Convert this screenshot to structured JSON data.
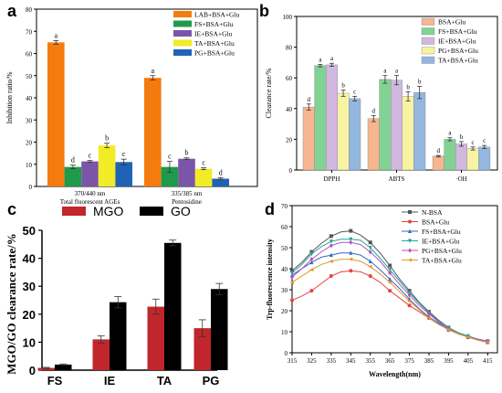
{
  "colors": {
    "orange": "#F47B0E",
    "green": "#1F9A4A",
    "purple": "#7B55A8",
    "yellow": "#F2EC26",
    "blue": "#1F63B4",
    "b_orange": "#F5B690",
    "b_green": "#82D293",
    "b_purple": "#D1B8DF",
    "b_yellow": "#F8F3A2",
    "b_blue": "#93B7DF",
    "red": "#C1262D",
    "black": "#000000",
    "d1": "#555555",
    "d2": "#E8423F",
    "d3": "#3B67C1",
    "d4": "#21A896",
    "d5": "#B84FC1",
    "d6": "#E09A2B"
  },
  "chart_data": [
    {
      "panel": "a",
      "type": "bar",
      "ylabel": "Inhibition ratio/%",
      "ylim": [
        0,
        80
      ],
      "yticks": [
        "0",
        "10",
        "20",
        "30",
        "40",
        "50",
        "60",
        "70",
        "80"
      ],
      "groups": [
        {
          "lines": [
            "370/440 nm",
            "Total fluorescent AGEs"
          ]
        },
        {
          "lines": [
            "335/385 nm",
            "Pentosidine"
          ]
        }
      ],
      "series": [
        {
          "name": "LAB+BSA+Glu",
          "color": "orange",
          "values": [
            65.0,
            49.0
          ],
          "errors": [
            0.8,
            1.0
          ],
          "letters": [
            "a",
            "a"
          ]
        },
        {
          "name": "FS+BSA+Glu",
          "color": "green",
          "values": [
            8.8,
            8.8
          ],
          "errors": [
            0.8,
            2.5
          ],
          "letters": [
            "d",
            "c"
          ]
        },
        {
          "name": "IE+BSA+Glu",
          "color": "purple",
          "values": [
            11.3,
            12.5
          ],
          "errors": [
            0.4,
            0.4
          ],
          "letters": [
            "c",
            "b"
          ]
        },
        {
          "name": "TA+BSA+Glu",
          "color": "yellow",
          "values": [
            18.5,
            8.0
          ],
          "errors": [
            1.0,
            0.4
          ],
          "letters": [
            "b",
            "c"
          ]
        },
        {
          "name": "PG+BSA+Glu",
          "color": "blue",
          "values": [
            11.0,
            3.5
          ],
          "errors": [
            1.3,
            0.5
          ],
          "letters": [
            "c",
            "d"
          ]
        }
      ]
    },
    {
      "panel": "b",
      "type": "bar",
      "ylabel": "Clearance rate/%",
      "ylim": [
        0,
        100
      ],
      "yticks": [
        "0",
        "20",
        "40",
        "60",
        "80",
        "100"
      ],
      "categories": [
        "DPPH",
        "ABTS",
        "·OH"
      ],
      "series": [
        {
          "name": "BSA+Glu",
          "color": "b_orange",
          "values": [
            41,
            33.5,
            9
          ],
          "errors": [
            2,
            2,
            0.5
          ],
          "letters": [
            "d",
            "d",
            "d"
          ]
        },
        {
          "name": "FS+BSA+Glu",
          "color": "b_green",
          "values": [
            68,
            59,
            20
          ],
          "errors": [
            0.8,
            2.5,
            1
          ],
          "letters": [
            "a",
            "a",
            "a"
          ]
        },
        {
          "name": "IE+BSA+Glu",
          "color": "b_purple",
          "values": [
            68.5,
            58.5,
            17
          ],
          "errors": [
            1,
            3,
            1.5
          ],
          "letters": [
            "a",
            "a",
            "b"
          ]
        },
        {
          "name": "PG+BSA+Glu",
          "color": "b_yellow",
          "values": [
            50,
            48,
            14
          ],
          "errors": [
            2,
            3,
            1
          ],
          "letters": [
            "b",
            "b",
            "c"
          ]
        },
        {
          "name": "TA+BSA+Glu",
          "color": "b_blue",
          "values": [
            46.5,
            50.5,
            15
          ],
          "errors": [
            1.5,
            4,
            1
          ],
          "letters": [
            "c",
            "b",
            "c"
          ]
        }
      ]
    },
    {
      "panel": "c",
      "type": "bar",
      "ylabel": "MGO/GO clearance rate/%",
      "ylim": [
        0,
        50
      ],
      "yticks": [
        "0",
        "10",
        "20",
        "30",
        "40",
        "50"
      ],
      "categories": [
        "FS",
        "IE",
        "TA",
        "PG"
      ],
      "series": [
        {
          "name": "MGO",
          "color": "red",
          "values": [
            0.8,
            11,
            22.7,
            15
          ],
          "errors": [
            0.2,
            1.3,
            2.7,
            3
          ]
        },
        {
          "name": "GO",
          "color": "black",
          "values": [
            2,
            24.3,
            45.5,
            29
          ],
          "errors": [
            0.2,
            2,
            1,
            2
          ]
        }
      ]
    },
    {
      "panel": "d",
      "type": "line",
      "xlabel": "Wavelength(nm)",
      "ylabel": "Trp-fluorescence intensity",
      "xlim": [
        315,
        420
      ],
      "ylim": [
        0,
        70
      ],
      "xticks": [
        "315",
        "325",
        "335",
        "345",
        "355",
        "365",
        "375",
        "385",
        "395",
        "405",
        "415"
      ],
      "yticks": [
        "0",
        "10",
        "20",
        "30",
        "40",
        "50",
        "60",
        "70"
      ],
      "x": [
        315,
        320,
        325,
        330,
        335,
        340,
        345,
        350,
        355,
        360,
        365,
        370,
        375,
        380,
        385,
        390,
        395,
        400,
        405,
        410,
        415
      ],
      "series": [
        {
          "name": "N-BSA",
          "marker": "square",
          "color": "d1",
          "values": [
            39,
            43,
            48,
            52,
            55.5,
            57.5,
            58,
            56,
            52.5,
            47.5,
            41.5,
            35,
            29.5,
            24,
            19.5,
            15.5,
            12,
            9.5,
            7.5,
            6.5,
            5.5
          ]
        },
        {
          "name": "BSA+Glu",
          "marker": "circle",
          "color": "d2",
          "values": [
            25,
            27,
            29.5,
            33,
            36.5,
            38.5,
            39,
            38.5,
            36.5,
            33.5,
            29.5,
            26,
            22.5,
            19.5,
            16.5,
            13.5,
            11,
            9,
            7.5,
            6,
            5
          ]
        },
        {
          "name": "FS+BSA+Glu",
          "marker": "triangle-up",
          "color": "d3",
          "values": [
            37,
            40,
            43,
            45.5,
            46.5,
            47.5,
            47.5,
            46.5,
            43.5,
            39.5,
            35,
            30.5,
            25.5,
            21,
            17,
            14,
            11,
            9,
            7.5,
            6,
            5
          ]
        },
        {
          "name": "IE+BSA+Glu",
          "marker": "triangle-down",
          "color": "d4",
          "values": [
            38,
            42,
            47,
            50.5,
            53,
            54,
            54,
            53.5,
            50,
            45,
            39.5,
            34,
            28.5,
            23.5,
            19,
            15,
            12,
            9.5,
            8,
            6.5,
            5.5
          ]
        },
        {
          "name": "PG+BSA+Glu",
          "marker": "diamond",
          "color": "d5",
          "values": [
            36,
            40,
            44.5,
            48,
            51,
            52.5,
            52.5,
            51.5,
            48,
            43.5,
            38,
            32.5,
            27.5,
            22.5,
            18.5,
            14.5,
            11.5,
            9,
            7.5,
            6.5,
            5.5
          ]
        },
        {
          "name": "TA+BSA+Glu",
          "marker": "triangle-left",
          "color": "d6",
          "values": [
            33.5,
            36.5,
            39.5,
            42,
            43.5,
            44.5,
            44.5,
            43.5,
            41,
            37.5,
            33.5,
            29,
            24.5,
            20.5,
            16.5,
            13.5,
            11,
            9,
            7.5,
            6,
            5
          ]
        }
      ]
    }
  ]
}
